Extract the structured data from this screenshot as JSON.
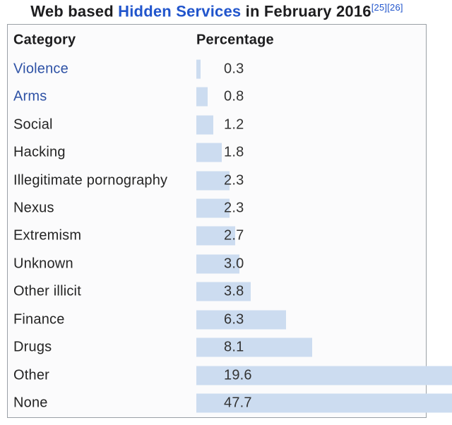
{
  "title": {
    "prefix": "Web based ",
    "link_text": "Hidden Services",
    "suffix": " in February 2016",
    "refs": [
      "[25]",
      "[26]"
    ]
  },
  "table": {
    "headers": {
      "category": "Category",
      "percentage": "Percentage"
    },
    "rows": [
      {
        "category": "Violence",
        "value": 0.3,
        "display": "0.3",
        "is_link": true
      },
      {
        "category": "Arms",
        "value": 0.8,
        "display": "0.8",
        "is_link": true
      },
      {
        "category": "Social",
        "value": 1.2,
        "display": "1.2",
        "is_link": false
      },
      {
        "category": "Hacking",
        "value": 1.8,
        "display": "1.8",
        "is_link": false
      },
      {
        "category": "Illegitimate pornography",
        "value": 2.3,
        "display": "2.3",
        "is_link": false
      },
      {
        "category": "Nexus",
        "value": 2.3,
        "display": "2.3",
        "is_link": false
      },
      {
        "category": "Extremism",
        "value": 2.7,
        "display": "2.7",
        "is_link": false
      },
      {
        "category": "Unknown",
        "value": 3.0,
        "display": "3.0",
        "is_link": false
      },
      {
        "category": "Other illicit",
        "value": 3.8,
        "display": "3.8",
        "is_link": false
      },
      {
        "category": "Finance",
        "value": 6.3,
        "display": "6.3",
        "is_link": false
      },
      {
        "category": "Drugs",
        "value": 8.1,
        "display": "8.1",
        "is_link": false
      },
      {
        "category": "Other",
        "value": 19.6,
        "display": "19.6",
        "is_link": false
      },
      {
        "category": "None",
        "value": 47.7,
        "display": "47.7",
        "is_link": false
      }
    ]
  },
  "colors": {
    "bar": "#ccdcf0",
    "table_link": "#2d51a5",
    "title_link": "#2155cc",
    "border": "#9aa0a6",
    "text": "#242424"
  },
  "chart_data": {
    "type": "bar",
    "orientation": "horizontal",
    "title": "Web based Hidden Services in February 2016",
    "xlabel": "Percentage",
    "ylabel": "Category",
    "data_labels": true,
    "grid": false,
    "legend": false,
    "categories": [
      "Violence",
      "Arms",
      "Social",
      "Hacking",
      "Illegitimate pornography",
      "Nexus",
      "Extremism",
      "Unknown",
      "Other illicit",
      "Finance",
      "Drugs",
      "Other",
      "None"
    ],
    "values": [
      0.3,
      0.8,
      1.2,
      1.8,
      2.3,
      2.3,
      2.7,
      3.0,
      3.8,
      6.3,
      8.1,
      19.6,
      47.7
    ]
  }
}
